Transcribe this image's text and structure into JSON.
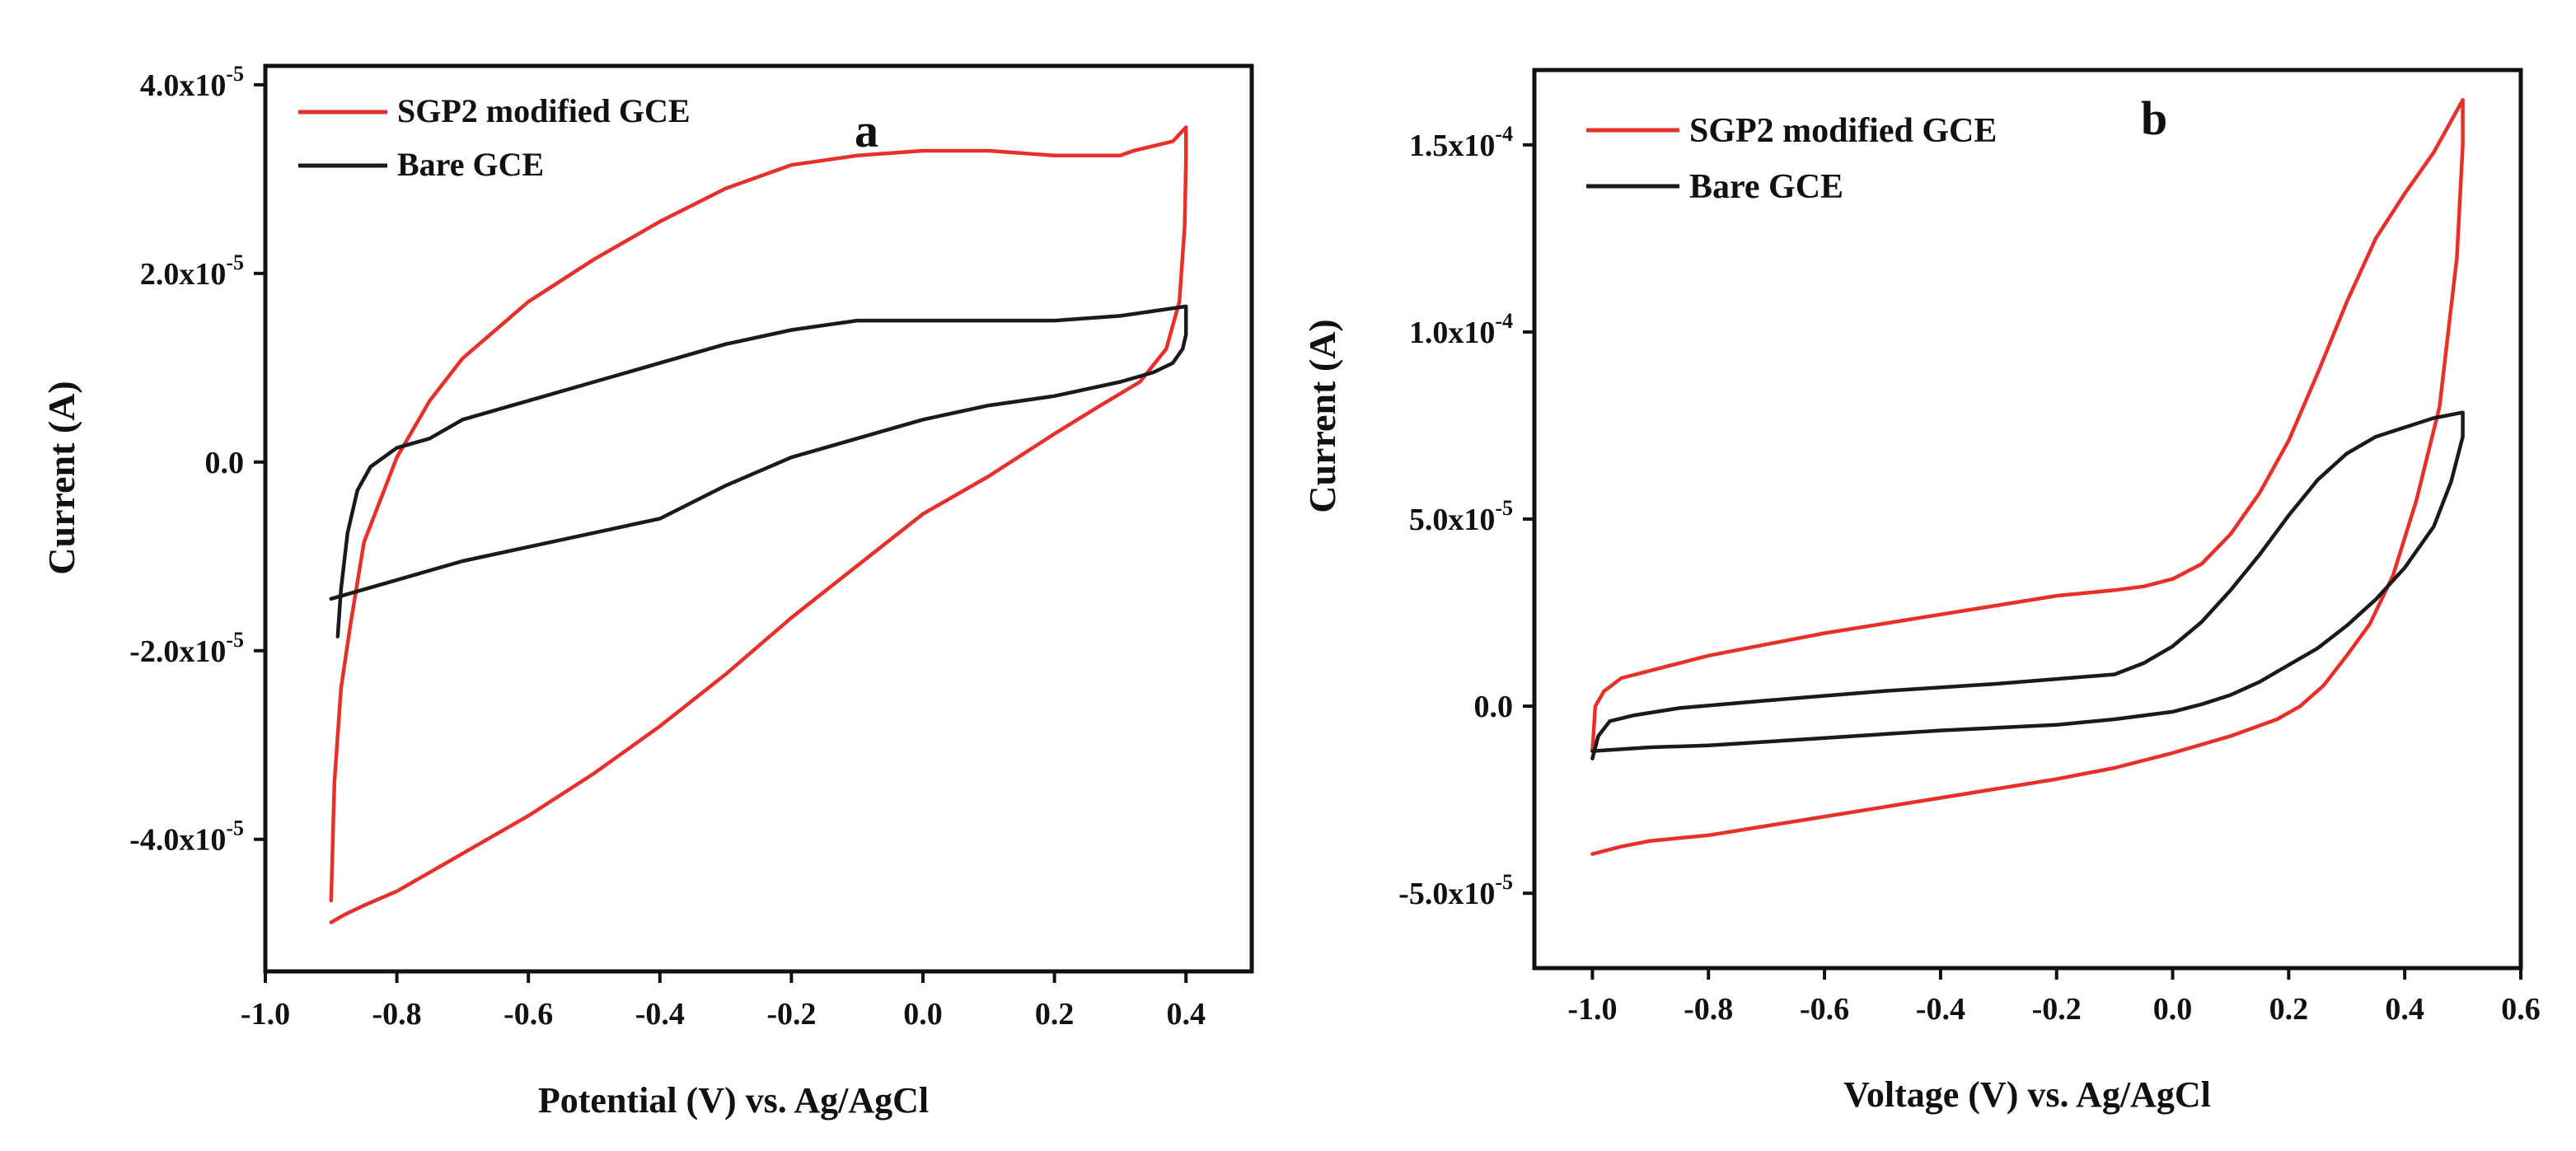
{
  "colors": {
    "series1": "#e8302a",
    "series2": "#1a1a1a",
    "axis": "#111111",
    "background": "#ffffff"
  },
  "chart_data": [
    {
      "panel": "a",
      "type": "line",
      "title": "",
      "xlabel": "Potential (V) vs. Ag/AgCl",
      "ylabel": "Current (A)",
      "xlim": [
        -1.0,
        0.5
      ],
      "ylim": [
        -5.4e-05,
        4.2e-05
      ],
      "xticks": [
        -1.0,
        -0.8,
        -0.6,
        -0.4,
        -0.2,
        0.0,
        0.2,
        0.4
      ],
      "xtick_labels": [
        "-1.0",
        "-0.8",
        "-0.6",
        "-0.4",
        "-0.2",
        "0.0",
        "0.2",
        "0.4"
      ],
      "yticks": [
        -4e-05,
        -2e-05,
        0.0,
        2e-05,
        4e-05
      ],
      "ytick_labels": [
        {
          "mant": "-4.0x10",
          "exp": "-5"
        },
        {
          "mant": "-2.0x10",
          "exp": "-5"
        },
        {
          "mant": "0.0",
          "exp": ""
        },
        {
          "mant": "2.0x10",
          "exp": "-5"
        },
        {
          "mant": "4.0x10",
          "exp": "-5"
        }
      ],
      "grid": false,
      "legend_position": "top-left",
      "series": [
        {
          "name": "SGP2 modified GCE",
          "color": "#e8302a",
          "x": [
            -0.9,
            -0.895,
            -0.885,
            -0.87,
            -0.85,
            -0.8,
            -0.75,
            -0.7,
            -0.6,
            -0.5,
            -0.4,
            -0.3,
            -0.2,
            -0.1,
            0.0,
            0.1,
            0.2,
            0.3,
            0.32,
            0.38,
            0.4,
            0.4,
            0.398,
            0.39,
            0.37,
            0.33,
            0.27,
            0.2,
            0.1,
            0.0,
            -0.1,
            -0.2,
            -0.3,
            -0.4,
            -0.5,
            -0.6,
            -0.7,
            -0.8,
            -0.85,
            -0.88,
            -0.9
          ],
          "y": [
            -4.65e-05,
            -3.4e-05,
            -2.4e-05,
            -1.7e-05,
            -8.5e-06,
            5e-07,
            6.5e-06,
            1.1e-05,
            1.7e-05,
            2.15e-05,
            2.55e-05,
            2.9e-05,
            3.15e-05,
            3.25e-05,
            3.3e-05,
            3.3e-05,
            3.25e-05,
            3.25e-05,
            3.3e-05,
            3.4e-05,
            3.55e-05,
            3.2e-05,
            2.5e-05,
            1.7e-05,
            1.2e-05,
            8.5e-06,
            6e-06,
            3e-06,
            -1.5e-06,
            -5.5e-06,
            -1.1e-05,
            -1.65e-05,
            -2.25e-05,
            -2.8e-05,
            -3.3e-05,
            -3.75e-05,
            -4.15e-05,
            -4.55e-05,
            -4.7e-05,
            -4.8e-05,
            -4.88e-05
          ]
        },
        {
          "name": "Bare GCE",
          "color": "#1a1a1a",
          "x": [
            -0.89,
            -0.885,
            -0.875,
            -0.86,
            -0.84,
            -0.8,
            -0.75,
            -0.7,
            -0.6,
            -0.5,
            -0.4,
            -0.3,
            -0.2,
            -0.1,
            0.0,
            0.1,
            0.2,
            0.3,
            0.35,
            0.4,
            0.4,
            0.395,
            0.38,
            0.35,
            0.3,
            0.2,
            0.1,
            0.0,
            -0.1,
            -0.2,
            -0.3,
            -0.4,
            -0.5,
            -0.6,
            -0.7,
            -0.8,
            -0.9
          ],
          "y": [
            -1.85e-05,
            -1.35e-05,
            -7.5e-06,
            -3e-06,
            -5e-07,
            1.5e-06,
            2.5e-06,
            4.5e-06,
            6.5e-06,
            8.5e-06,
            1.05e-05,
            1.25e-05,
            1.4e-05,
            1.5e-05,
            1.5e-05,
            1.5e-05,
            1.5e-05,
            1.55e-05,
            1.6e-05,
            1.65e-05,
            1.35e-05,
            1.2e-05,
            1.05e-05,
            9.5e-06,
            8.5e-06,
            7e-06,
            6e-06,
            4.5e-06,
            2.5e-06,
            5e-07,
            -2.5e-06,
            -6e-06,
            -7.5e-06,
            -9e-06,
            -1.05e-05,
            -1.25e-05,
            -1.45e-05
          ]
        }
      ]
    },
    {
      "panel": "b",
      "type": "line",
      "title": "",
      "xlabel": "Voltage (V) vs. Ag/AgCl",
      "ylabel": "Current (A)",
      "xlim": [
        -1.1,
        0.6
      ],
      "ylim": [
        -7e-05,
        0.00017
      ],
      "xticks": [
        -1.0,
        -0.8,
        -0.6,
        -0.4,
        -0.2,
        0.0,
        0.2,
        0.4,
        0.6
      ],
      "xtick_labels": [
        "-1.0",
        "-0.8",
        "-0.6",
        "-0.4",
        "-0.2",
        "0.0",
        "0.2",
        "0.4",
        "0.6"
      ],
      "yticks": [
        -5e-05,
        0.0,
        5e-05,
        0.0001,
        0.00015
      ],
      "ytick_labels": [
        {
          "mant": "-5.0x10",
          "exp": "-5"
        },
        {
          "mant": "0.0",
          "exp": ""
        },
        {
          "mant": "5.0x10",
          "exp": "-5"
        },
        {
          "mant": "1.0x10",
          "exp": "-4"
        },
        {
          "mant": "1.5x10",
          "exp": "-4"
        }
      ],
      "grid": false,
      "legend_position": "top-left",
      "series": [
        {
          "name": "SGP2 modified GCE",
          "color": "#e8302a",
          "x": [
            -1.0,
            -0.995,
            -0.98,
            -0.95,
            -0.9,
            -0.8,
            -0.7,
            -0.6,
            -0.5,
            -0.4,
            -0.3,
            -0.2,
            -0.1,
            -0.05,
            0.0,
            0.05,
            0.1,
            0.15,
            0.2,
            0.25,
            0.3,
            0.35,
            0.4,
            0.45,
            0.5,
            0.5,
            0.49,
            0.46,
            0.42,
            0.38,
            0.34,
            0.3,
            0.26,
            0.22,
            0.18,
            0.1,
            0.0,
            -0.1,
            -0.2,
            -0.4,
            -0.6,
            -0.8,
            -0.9,
            -0.95,
            -1.0
          ],
          "y": [
            -1.2e-05,
            0.0,
            4e-06,
            7.5e-06,
            9.5e-06,
            1.35e-05,
            1.65e-05,
            1.95e-05,
            2.2e-05,
            2.45e-05,
            2.7e-05,
            2.95e-05,
            3.1e-05,
            3.2e-05,
            3.4e-05,
            3.8e-05,
            4.6e-05,
            5.7e-05,
            7.1e-05,
            8.9e-05,
            0.000108,
            0.000125,
            0.000137,
            0.000148,
            0.000162,
            0.00015,
            0.00012,
            8e-05,
            5.5e-05,
            3.5e-05,
            2.2e-05,
            1.35e-05,
            5.5e-06,
            0.0,
            -3.5e-06,
            -8e-06,
            -1.25e-05,
            -1.65e-05,
            -1.95e-05,
            -2.45e-05,
            -2.95e-05,
            -3.45e-05,
            -3.6e-05,
            -3.75e-05,
            -3.95e-05
          ]
        },
        {
          "name": "Bare GCE",
          "color": "#1a1a1a",
          "x": [
            -1.0,
            -0.99,
            -0.97,
            -0.93,
            -0.85,
            -0.7,
            -0.5,
            -0.3,
            -0.1,
            -0.05,
            0.0,
            0.05,
            0.1,
            0.15,
            0.2,
            0.25,
            0.3,
            0.35,
            0.4,
            0.45,
            0.5,
            0.5,
            0.48,
            0.45,
            0.4,
            0.35,
            0.3,
            0.25,
            0.2,
            0.15,
            0.1,
            0.05,
            0.0,
            -0.1,
            -0.2,
            -0.4,
            -0.6,
            -0.8,
            -0.9,
            -1.0
          ],
          "y": [
            -1.4e-05,
            -8e-06,
            -4e-06,
            -2.5e-06,
            -5e-07,
            1.5e-06,
            4e-06,
            6e-06,
            8.5e-06,
            1.15e-05,
            1.6e-05,
            2.25e-05,
            3.1e-05,
            4.05e-05,
            5.1e-05,
            6.05e-05,
            6.75e-05,
            7.2e-05,
            7.45e-05,
            7.7e-05,
            7.85e-05,
            7.2e-05,
            6e-05,
            4.8e-05,
            3.7e-05,
            2.85e-05,
            2.15e-05,
            1.55e-05,
            1.1e-05,
            6.5e-06,
            3e-06,
            5e-07,
            -1.5e-06,
            -3.5e-06,
            -5e-06,
            -6.5e-06,
            -8.5e-06,
            -1.05e-05,
            -1.1e-05,
            -1.2e-05
          ]
        }
      ]
    }
  ]
}
